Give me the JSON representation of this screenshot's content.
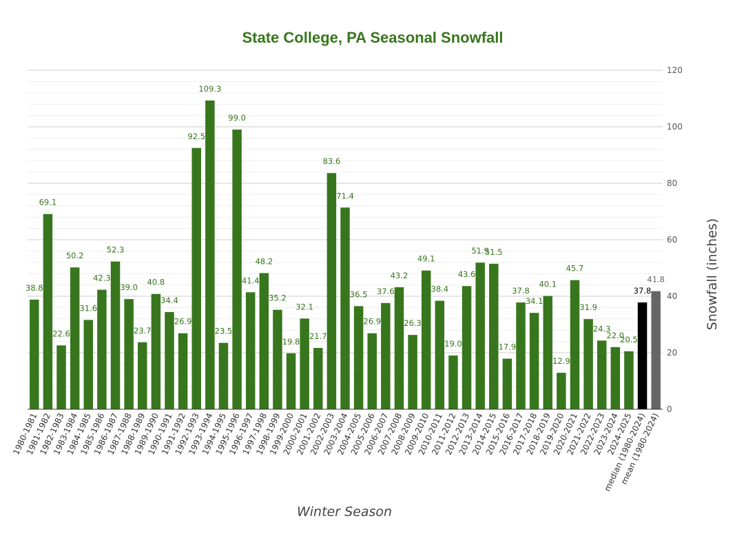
{
  "chart_data": {
    "type": "bar",
    "title": "State College, PA Seasonal Snowfall",
    "xlabel": "Winter Season",
    "ylabel": "Snowfall (inches)",
    "ylim": [
      0,
      120
    ],
    "y_ticks": [
      0,
      20,
      40,
      60,
      80,
      100,
      120
    ],
    "grid": true,
    "legend": "none",
    "categories": [
      "1980-1981",
      "1981-1982",
      "1982-1983",
      "1983-1984",
      "1984-1985",
      "1985-1986",
      "1986-1987",
      "1987-1988",
      "1988-1989",
      "1989-1990",
      "1990-1991",
      "1991-1992",
      "1992-1993",
      "1993-1994",
      "1994-1995",
      "1995-1996",
      "1996-1997",
      "1997-1998",
      "1998-1999",
      "1999-2000",
      "2000-2001",
      "2001-2002",
      "2002-2003",
      "2003-2004",
      "2004-2005",
      "2005-2006",
      "2006-2007",
      "2007-2008",
      "2008-2009",
      "2009-2010",
      "2010-2011",
      "2011-2012",
      "2012-2013",
      "2013-2014",
      "2014-2015",
      "2015-2016",
      "2016-2017",
      "2017-2018",
      "2018-2019",
      "2019-2020",
      "2020-2021",
      "2021-2022",
      "2022-2023",
      "2023-2024",
      "2024-2025",
      "median (1980-2024)",
      "mean (1980-2024)"
    ],
    "values": [
      38.8,
      69.1,
      22.6,
      50.2,
      31.6,
      42.3,
      52.3,
      39.0,
      23.7,
      40.8,
      34.4,
      26.9,
      92.5,
      109.3,
      23.5,
      99.0,
      41.4,
      48.2,
      35.2,
      19.8,
      32.1,
      21.7,
      83.6,
      71.4,
      36.5,
      26.9,
      37.6,
      43.2,
      26.3,
      49.1,
      38.4,
      19.0,
      43.6,
      51.9,
      51.5,
      17.9,
      37.8,
      34.1,
      40.1,
      12.9,
      45.7,
      31.9,
      24.3,
      22.0,
      20.5,
      37.8,
      41.8
    ],
    "data_labels": [
      "38.8",
      "69.1",
      "22.6",
      "50.2",
      "31.6",
      "42.3",
      "52.3",
      "39.0",
      "23.7",
      "40.8",
      "34.4",
      "26.9",
      "92.5",
      "109.3",
      "23.5",
      "99.0",
      "41.4",
      "48.2",
      "35.2",
      "19.8",
      "32.1",
      "21.7",
      "83.6",
      "71.4",
      "36.5",
      "26.9",
      "37.6",
      "43.2",
      "26.3",
      "49.1",
      "38.4",
      "19.0",
      "43.6",
      "51.9",
      "51.5",
      "17.9",
      "37.8",
      "34.1",
      "40.1",
      "12.9",
      "45.7",
      "31.9",
      "24.3",
      "22.0",
      "20.5",
      "37.8",
      "41.8"
    ]
  },
  "colors": {
    "title": "#38761d",
    "bar_default": "#38761d",
    "label_default": "#38761d",
    "bar_median": "#000000",
    "label_median": "#000000",
    "bar_mean": "#666666",
    "label_mean": "#666666",
    "axis_title": "#444444",
    "gridline_major": "#cccccc",
    "gridline_minor": "#eeeeee",
    "baseline": "#333333"
  }
}
